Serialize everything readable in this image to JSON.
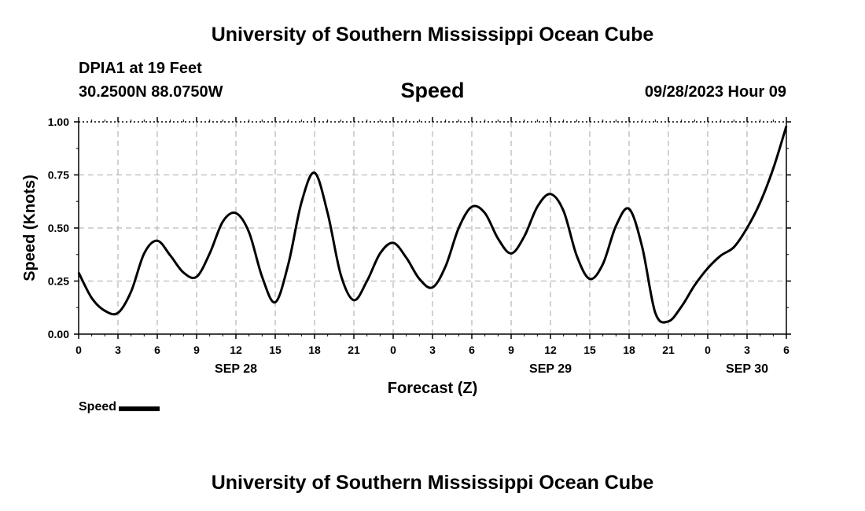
{
  "header": {
    "title": "University of Southern Mississippi Ocean Cube",
    "station": "DPIA1 at 19 Feet",
    "coords": "30.2500N  88.0750W",
    "panel_title": "Speed",
    "datetime": "09/28/2023 Hour 09",
    "footer_title": "University of Southern Mississippi Ocean Cube"
  },
  "legend": {
    "label": "Speed"
  },
  "colors": {
    "line": "#000000",
    "grid": "#bbbbbb",
    "axis": "#000000"
  },
  "chart_data": {
    "type": "line",
    "title": "Speed",
    "xlabel": "Forecast (Z)",
    "ylabel": "Speed (Knots)",
    "ylim": [
      0,
      1
    ],
    "xlim": [
      0,
      54
    ],
    "grid": true,
    "yticks": [
      "0.00",
      "0.25",
      "0.50",
      "0.75",
      "1.00"
    ],
    "xticks": [
      {
        "h": 0,
        "label": "0"
      },
      {
        "h": 3,
        "label": "3"
      },
      {
        "h": 6,
        "label": "6"
      },
      {
        "h": 9,
        "label": "9"
      },
      {
        "h": 12,
        "label": "12"
      },
      {
        "h": 15,
        "label": "15"
      },
      {
        "h": 18,
        "label": "18"
      },
      {
        "h": 21,
        "label": "21"
      },
      {
        "h": 24,
        "label": "0"
      },
      {
        "h": 27,
        "label": "3"
      },
      {
        "h": 30,
        "label": "6"
      },
      {
        "h": 33,
        "label": "9"
      },
      {
        "h": 36,
        "label": "12"
      },
      {
        "h": 39,
        "label": "15"
      },
      {
        "h": 42,
        "label": "18"
      },
      {
        "h": 45,
        "label": "21"
      },
      {
        "h": 48,
        "label": "0"
      },
      {
        "h": 51,
        "label": "3"
      },
      {
        "h": 54,
        "label": "6"
      }
    ],
    "day_labels": [
      {
        "h": 12,
        "label": "SEP 28"
      },
      {
        "h": 36,
        "label": "SEP 29"
      },
      {
        "h": 51,
        "label": "SEP 30"
      }
    ],
    "series": [
      {
        "name": "Speed",
        "x": [
          0,
          1,
          2,
          3,
          4,
          5,
          6,
          7,
          8,
          9,
          10,
          11,
          12,
          13,
          14,
          15,
          16,
          17,
          18,
          19,
          20,
          21,
          22,
          23,
          24,
          25,
          26,
          27,
          28,
          29,
          30,
          31,
          32,
          33,
          34,
          35,
          36,
          37,
          38,
          39,
          40,
          41,
          42,
          43,
          44,
          45,
          46,
          47,
          48,
          49,
          50,
          51,
          52,
          53,
          54
        ],
        "values": [
          0.29,
          0.17,
          0.11,
          0.1,
          0.2,
          0.38,
          0.44,
          0.37,
          0.29,
          0.27,
          0.38,
          0.53,
          0.57,
          0.48,
          0.27,
          0.15,
          0.33,
          0.62,
          0.76,
          0.57,
          0.28,
          0.16,
          0.25,
          0.38,
          0.43,
          0.36,
          0.26,
          0.22,
          0.32,
          0.5,
          0.6,
          0.57,
          0.45,
          0.38,
          0.46,
          0.6,
          0.66,
          0.58,
          0.37,
          0.26,
          0.33,
          0.51,
          0.59,
          0.41,
          0.1,
          0.06,
          0.13,
          0.23,
          0.31,
          0.37,
          0.41,
          0.5,
          0.62,
          0.78,
          0.98
        ]
      }
    ]
  }
}
